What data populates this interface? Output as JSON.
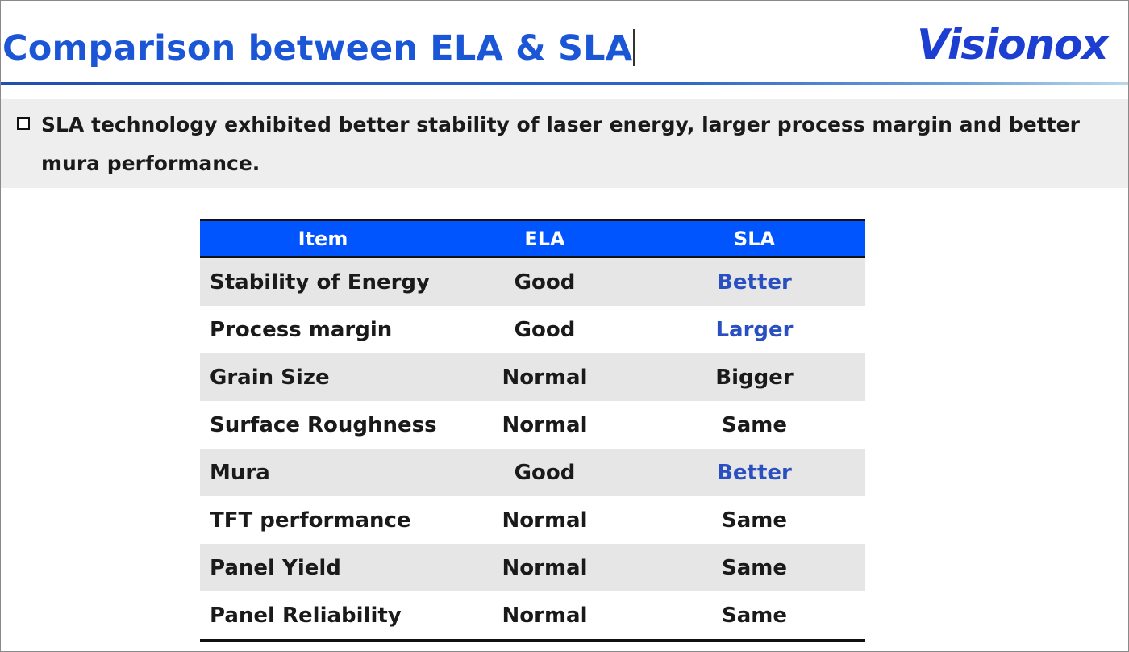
{
  "header": {
    "title": "Comparison between ELA & SLA",
    "logo_text": "Visionox",
    "title_color": "#1a56d6",
    "logo_color": "#1c3fd1"
  },
  "bullet": {
    "icon": "hollow-square-bullet",
    "text": "SLA technology exhibited better stability of laser energy, larger process margin and better mura performance."
  },
  "table": {
    "header_color": "#0055ff",
    "highlight_color": "#2a4fc0",
    "columns": [
      "Item",
      "ELA",
      "SLA"
    ],
    "rows": [
      {
        "item": "Stability of Energy",
        "ela": "Good",
        "sla": "Better",
        "highlight": true
      },
      {
        "item": "Process margin",
        "ela": "Good",
        "sla": "Larger",
        "highlight": true
      },
      {
        "item": "Grain Size",
        "ela": "Normal",
        "sla": "Bigger",
        "highlight": false
      },
      {
        "item": "Surface Roughness",
        "ela": "Normal",
        "sla": "Same",
        "highlight": false
      },
      {
        "item": "Mura",
        "ela": "Good",
        "sla": "Better",
        "highlight": true
      },
      {
        "item": "TFT performance",
        "ela": "Normal",
        "sla": "Same",
        "highlight": false
      },
      {
        "item": "Panel Yield",
        "ela": "Normal",
        "sla": "Same",
        "highlight": false
      },
      {
        "item": "Panel Reliability",
        "ela": "Normal",
        "sla": "Same",
        "highlight": false
      }
    ]
  }
}
